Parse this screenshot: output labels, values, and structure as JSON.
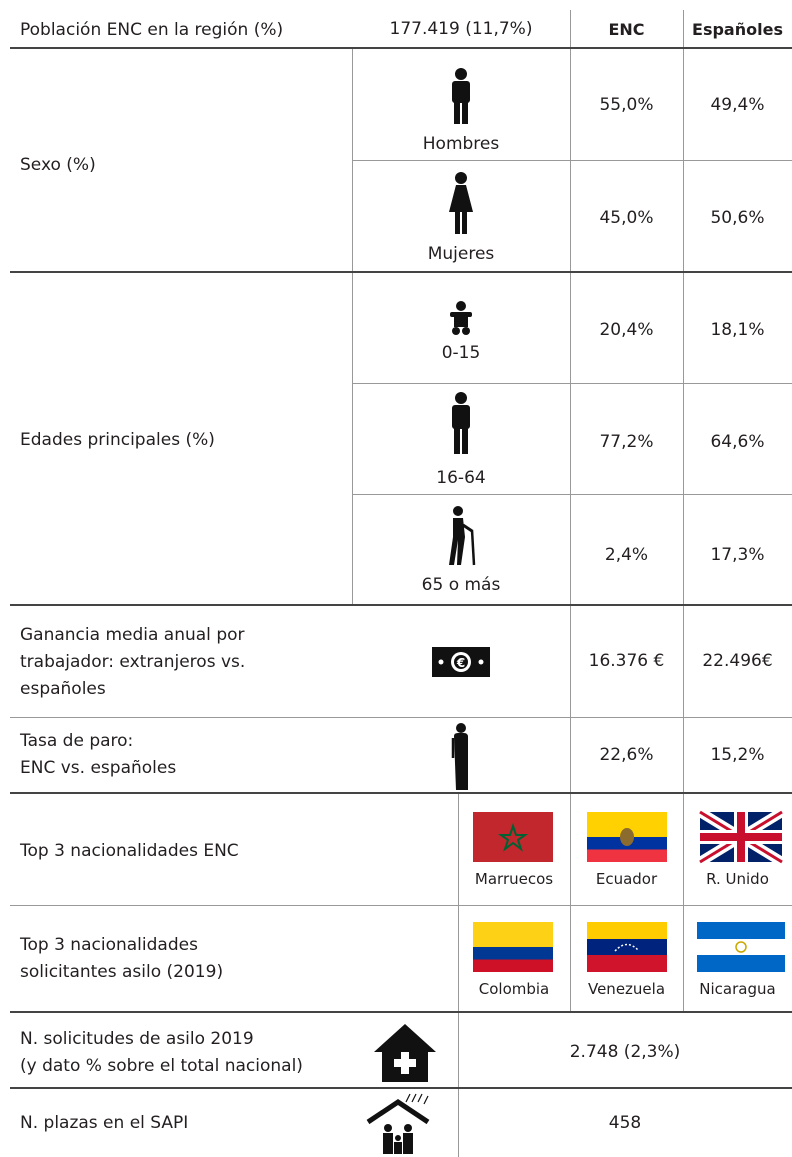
{
  "header": {
    "label": "Población ENC en la región (%)",
    "value": "177.419 (11,7%)",
    "col1": "ENC",
    "col2": "Españoles"
  },
  "sexo": {
    "label": "Sexo (%)",
    "rows": [
      {
        "label": "Hombres",
        "enc": "55,0%",
        "esp": "49,4%"
      },
      {
        "label": "Mujeres",
        "enc": "45,0%",
        "esp": "50,6%"
      }
    ]
  },
  "edades": {
    "label": "Edades principales (%)",
    "rows": [
      {
        "label": "0-15",
        "enc": "20,4%",
        "esp": "18,1%"
      },
      {
        "label": "16-64",
        "enc": "77,2%",
        "esp": "64,6%"
      },
      {
        "label": "65 o más",
        "enc": "2,4%",
        "esp": "17,3%"
      }
    ]
  },
  "ganancia": {
    "label": "Ganancia media anual por\ntrabajador: extranjeros vs.\nespañoles",
    "enc": "16.376 €",
    "esp": "22.496€"
  },
  "paro": {
    "label": "Tasa de paro:\nENC vs. españoles",
    "enc": "22,6%",
    "esp": "15,2%"
  },
  "top_enc": {
    "label": "Top 3 nacionalidades ENC",
    "countries": [
      "Marruecos",
      "Ecuador",
      "R. Unido"
    ]
  },
  "top_asilo": {
    "label": "Top 3 nacionalidades\nsolicitantes asilo (2019)",
    "countries": [
      "Colombia",
      "Venezuela",
      "Nicaragua"
    ]
  },
  "solicitudes": {
    "label": "N. solicitudes de asilo 2019\n(y dato % sobre el total nacional)",
    "value": "2.748 (2,3%)"
  },
  "plazas": {
    "label": "N. plazas en el SAPI",
    "value": "458"
  }
}
